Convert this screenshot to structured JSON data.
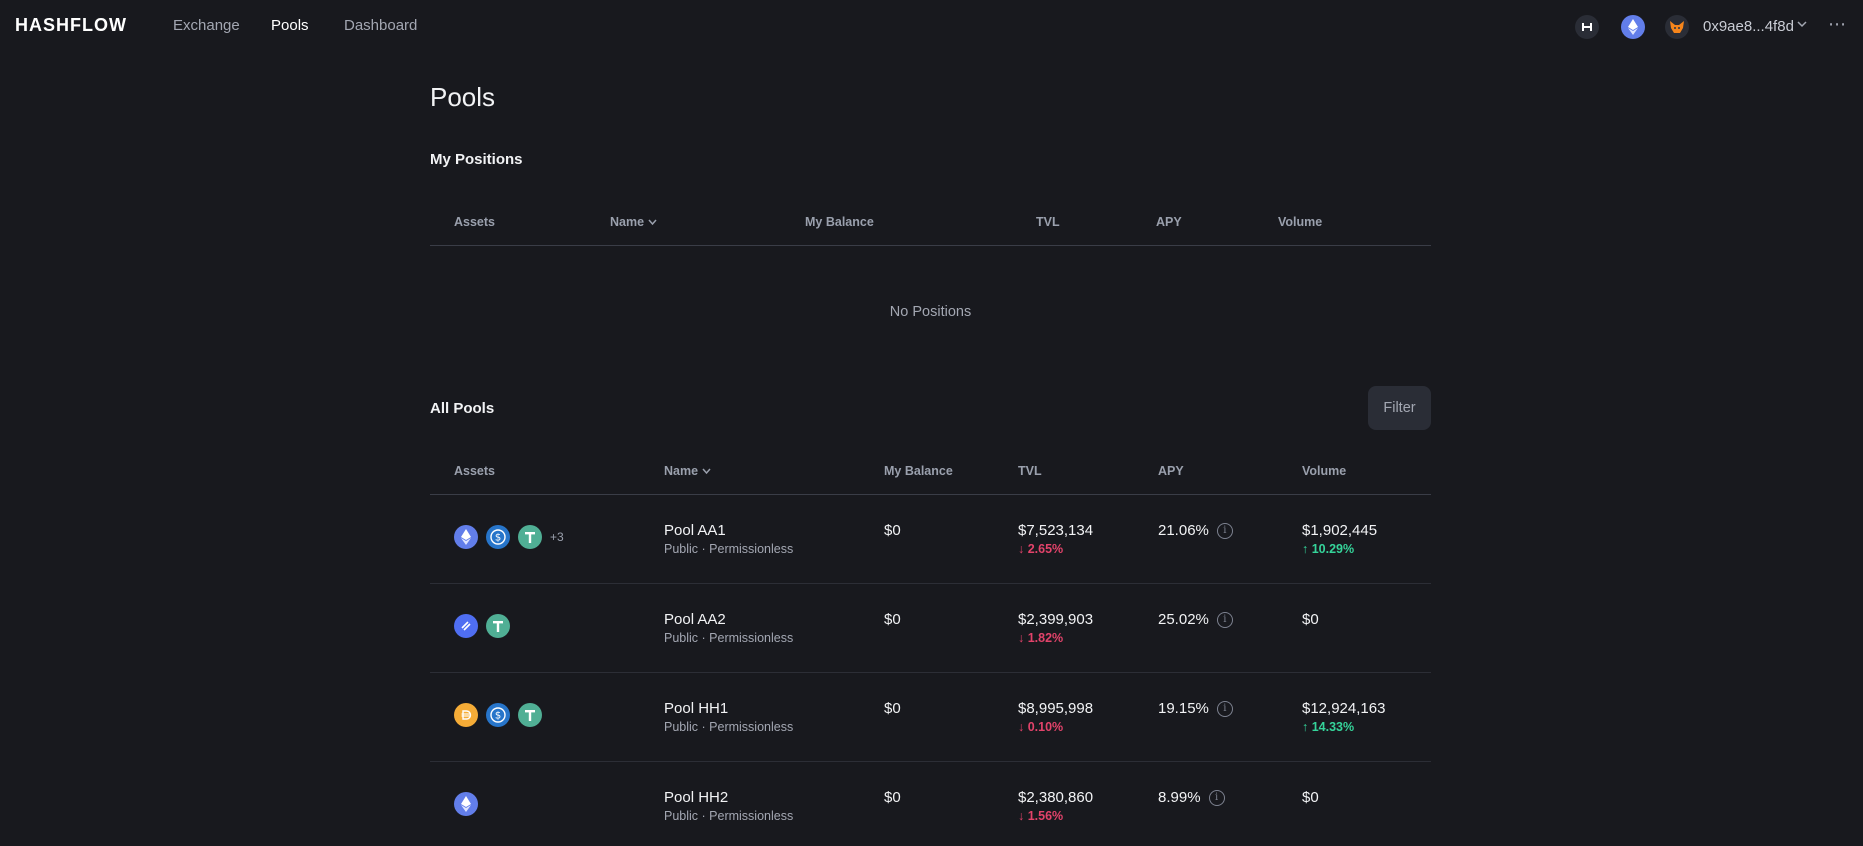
{
  "nav": {
    "logo": "HASHFLOW",
    "links": [
      "Exchange",
      "Pools",
      "Dashboard"
    ],
    "active": "Pools",
    "wallet_address": "0x9ae8...4f8d",
    "more_label": "⋯"
  },
  "page": {
    "title": "Pools"
  },
  "my_positions": {
    "title": "My Positions",
    "headers": {
      "assets": "Assets",
      "name": "Name",
      "balance": "My Balance",
      "tvl": "TVL",
      "apy": "APY",
      "volume": "Volume"
    },
    "empty_text": "No Positions"
  },
  "all_pools": {
    "title": "All Pools",
    "filter_label": "Filter",
    "headers": {
      "assets": "Assets",
      "name": "Name",
      "balance": "My Balance",
      "tvl": "TVL",
      "apy": "APY",
      "volume": "Volume"
    },
    "rows": [
      {
        "name": "Pool AA1",
        "sub": "Public · Permissionless",
        "balance": "$0",
        "tvl": "$7,523,134",
        "tvl_change": "↓ 2.65%",
        "apy": "21.06%",
        "volume": "$1,902,445",
        "volume_change": "↑ 10.29%",
        "extra_tokens": "+3",
        "tokens": [
          "eth",
          "usdc",
          "usdt"
        ]
      },
      {
        "name": "Pool AA2",
        "sub": "Public · Permissionless",
        "balance": "$0",
        "tvl": "$2,399,903",
        "tvl_change": "↓ 1.82%",
        "apy": "25.02%",
        "volume": "$0",
        "volume_change": "",
        "extra_tokens": "",
        "tokens": [
          "hft",
          "usdt"
        ]
      },
      {
        "name": "Pool HH1",
        "sub": "Public · Permissionless",
        "balance": "$0",
        "tvl": "$8,995,998",
        "tvl_change": "↓ 0.10%",
        "apy": "19.15%",
        "volume": "$12,924,163",
        "volume_change": "↑ 14.33%",
        "extra_tokens": "",
        "tokens": [
          "dai",
          "usdc",
          "usdt"
        ]
      },
      {
        "name": "Pool HH2",
        "sub": "Public · Permissionless",
        "balance": "$0",
        "tvl": "$2,380,860",
        "tvl_change": "↓ 1.56%",
        "apy": "8.99%",
        "volume": "$0",
        "volume_change": "",
        "extra_tokens": "",
        "tokens": [
          "eth"
        ]
      }
    ]
  },
  "colors": {
    "bg": "#18191e",
    "negative": "#e2436a",
    "positive": "#35d49a",
    "eth": "#627eea",
    "usdc": "#2775ca",
    "usdt": "#50af95",
    "dai": "#f5ac37",
    "hft": "#4f6ef2"
  }
}
